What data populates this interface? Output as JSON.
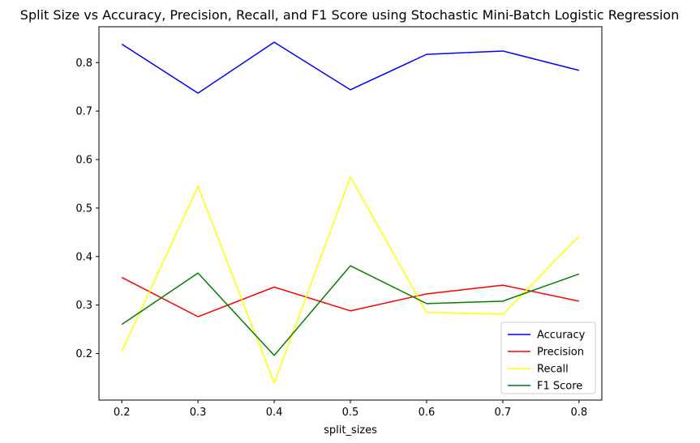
{
  "chart_data": {
    "type": "line",
    "title": "Split Size vs Accuracy, Precision, Recall, and F1 Score using Stochastic Mini-Batch Logistic Regression",
    "xlabel": "split_sizes",
    "ylabel": "",
    "x": [
      0.2,
      0.3,
      0.4,
      0.5,
      0.6,
      0.7,
      0.8
    ],
    "xticks": [
      "0.2",
      "0.3",
      "0.4",
      "0.5",
      "0.6",
      "0.7",
      "0.8"
    ],
    "yticks": [
      "0.2",
      "0.3",
      "0.4",
      "0.5",
      "0.6",
      "0.7",
      "0.8"
    ],
    "xlim": [
      0.17,
      0.83
    ],
    "ylim": [
      0.104,
      0.874
    ],
    "grid": false,
    "legend_position": "lower-right",
    "series": [
      {
        "name": "Accuracy",
        "color": "#0000ff",
        "values": [
          0.838,
          0.737,
          0.842,
          0.744,
          0.817,
          0.824,
          0.784
        ]
      },
      {
        "name": "Precision",
        "color": "#ff0000",
        "values": [
          0.357,
          0.276,
          0.337,
          0.288,
          0.323,
          0.341,
          0.308
        ]
      },
      {
        "name": "Recall",
        "color": "#ffff00",
        "values": [
          0.204,
          0.545,
          0.139,
          0.564,
          0.285,
          0.281,
          0.442
        ]
      },
      {
        "name": "F1 Score",
        "color": "#008000",
        "values": [
          0.26,
          0.366,
          0.196,
          0.381,
          0.303,
          0.308,
          0.364
        ]
      }
    ]
  }
}
